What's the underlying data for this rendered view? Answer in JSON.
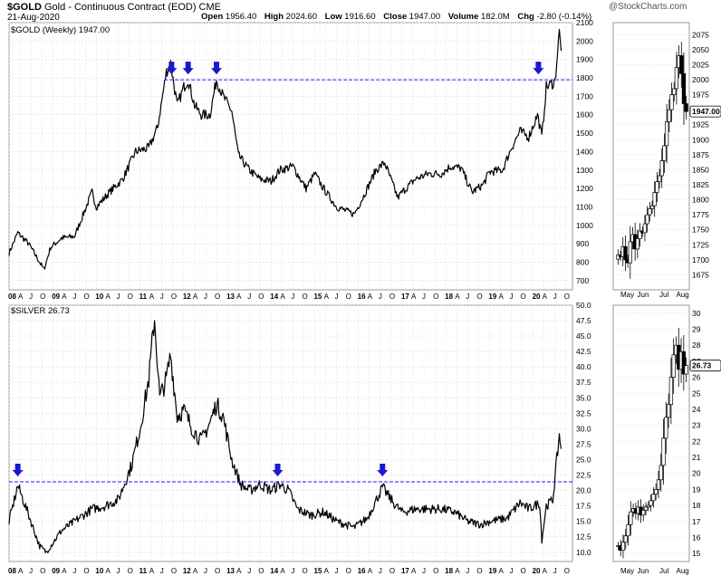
{
  "header": {
    "symbol": "$GOLD",
    "title": "Gold - Continuous Contract (EOD)",
    "exchange": "CME",
    "date": "21-Aug-2020",
    "open_label": "Open",
    "open": "1956.40",
    "high_label": "High",
    "high": "2024.60",
    "low_label": "Low",
    "low": "1916.60",
    "close_label": "Close",
    "close": "1947.00",
    "volume_label": "Volume",
    "volume": "182.0M",
    "chg_label": "Chg",
    "chg": "-2.80 (-0.14%)",
    "brand": "@StockCharts.com"
  },
  "colors": {
    "price_line": "#000000",
    "reference_line": "#1a1aff",
    "arrow": "#1a1acc",
    "grid": "#dcdcdc"
  },
  "chart_data": [
    {
      "type": "line",
      "label": "$GOLD (Weekly) 1947.00",
      "x_tick_labels": [
        "08",
        "A",
        "J",
        "O",
        "09",
        "A",
        "J",
        "O",
        "10",
        "A",
        "J",
        "O",
        "11",
        "A",
        "J",
        "O",
        "12",
        "A",
        "J",
        "O",
        "13",
        "A",
        "J",
        "O",
        "14",
        "A",
        "J",
        "O",
        "15",
        "A",
        "J",
        "O",
        "16",
        "A",
        "J",
        "O",
        "17",
        "A",
        "J",
        "O",
        "18",
        "A",
        "J",
        "O",
        "19",
        "A",
        "J",
        "O",
        "20",
        "A",
        "J",
        "O"
      ],
      "x_range": [
        2008.0,
        2020.9
      ],
      "ylim": [
        650,
        2100
      ],
      "y_ticks": [
        700,
        800,
        900,
        1000,
        1100,
        1200,
        1300,
        1400,
        1500,
        1600,
        1700,
        1800,
        1900,
        2000,
        2100
      ],
      "reference_line": 1790,
      "arrows_at": [
        2011.72,
        2012.1,
        2012.75,
        2020.12
      ],
      "series": [
        {
          "x": [
            2008.0,
            2008.2,
            2008.45,
            2008.8,
            2008.95,
            2009.2,
            2009.5,
            2009.9,
            2010.0,
            2010.3,
            2010.6,
            2010.9,
            2011.2,
            2011.4,
            2011.6,
            2011.7,
            2011.85,
            2012.0,
            2012.1,
            2012.25,
            2012.4,
            2012.6,
            2012.75,
            2012.9,
            2013.1,
            2013.25,
            2013.5,
            2013.75,
            2014.0,
            2014.2,
            2014.5,
            2014.8,
            2015.0,
            2015.2,
            2015.5,
            2015.9,
            2016.1,
            2016.4,
            2016.6,
            2016.9,
            2017.0,
            2017.3,
            2017.6,
            2017.9,
            2018.1,
            2018.35,
            2018.6,
            2018.85,
            2019.0,
            2019.3,
            2019.5,
            2019.7,
            2019.9,
            2020.1,
            2020.2,
            2020.3,
            2020.5,
            2020.6,
            2020.64
          ],
          "values": [
            850,
            960,
            900,
            760,
            880,
            930,
            940,
            1180,
            1100,
            1180,
            1250,
            1400,
            1420,
            1530,
            1830,
            1880,
            1650,
            1750,
            1790,
            1650,
            1600,
            1600,
            1790,
            1700,
            1620,
            1380,
            1300,
            1250,
            1240,
            1300,
            1320,
            1200,
            1280,
            1200,
            1100,
            1060,
            1150,
            1300,
            1340,
            1150,
            1180,
            1250,
            1280,
            1280,
            1320,
            1310,
            1180,
            1220,
            1290,
            1300,
            1420,
            1510,
            1480,
            1600,
            1480,
            1750,
            1780,
            2050,
            1947
          ]
        }
      ]
    },
    {
      "type": "line",
      "label": "$SILVER 26.73",
      "x_tick_labels": [
        "08",
        "A",
        "J",
        "O",
        "09",
        "A",
        "J",
        "O",
        "10",
        "A",
        "J",
        "O",
        "11",
        "A",
        "J",
        "O",
        "12",
        "A",
        "J",
        "O",
        "13",
        "A",
        "J",
        "O",
        "14",
        "A",
        "J",
        "O",
        "15",
        "A",
        "J",
        "O",
        "16",
        "A",
        "J",
        "O",
        "17",
        "A",
        "J",
        "O",
        "18",
        "A",
        "J",
        "O",
        "19",
        "A",
        "J",
        "O",
        "20",
        "A",
        "J",
        "O"
      ],
      "x_range": [
        2008.0,
        2020.9
      ],
      "ylim": [
        8.5,
        50
      ],
      "y_ticks": [
        10.0,
        12.5,
        15.0,
        17.5,
        20.0,
        22.5,
        25.0,
        27.5,
        30.0,
        32.5,
        35.0,
        37.5,
        40.0,
        42.5,
        45.0,
        47.5,
        50.0
      ],
      "reference_line": 21.4,
      "arrows_at": [
        2008.2,
        2014.15,
        2016.55
      ],
      "series": [
        {
          "x": [
            2008.0,
            2008.2,
            2008.4,
            2008.7,
            2008.85,
            2009.2,
            2009.5,
            2009.9,
            2010.2,
            2010.5,
            2010.8,
            2011.0,
            2011.2,
            2011.33,
            2011.45,
            2011.6,
            2011.7,
            2011.85,
            2012.0,
            2012.2,
            2012.4,
            2012.6,
            2012.75,
            2012.9,
            2013.1,
            2013.3,
            2013.5,
            2013.75,
            2014.0,
            2014.2,
            2014.4,
            2014.6,
            2014.9,
            2015.2,
            2015.5,
            2015.9,
            2016.2,
            2016.55,
            2016.8,
            2017.0,
            2017.3,
            2017.6,
            2017.9,
            2018.2,
            2018.5,
            2018.8,
            2019.0,
            2019.4,
            2019.7,
            2019.9,
            2020.15,
            2020.2,
            2020.3,
            2020.45,
            2020.6,
            2020.64
          ],
          "values": [
            15,
            20.8,
            17,
            11,
            10,
            13.5,
            15,
            17,
            17.5,
            18.5,
            24,
            30,
            38,
            48,
            35,
            38,
            42,
            32,
            33,
            30,
            28,
            31,
            34,
            32,
            25,
            21,
            20,
            21,
            20,
            21,
            20,
            17,
            16,
            16.5,
            15,
            14,
            15.5,
            20.5,
            18,
            16.5,
            17,
            17,
            17,
            16.5,
            15,
            14.5,
            15,
            15.5,
            18,
            17,
            18,
            12,
            17.5,
            18.5,
            29,
            26.73
          ]
        }
      ]
    }
  ],
  "mini_charts": [
    {
      "type": "candlestick",
      "x_tick_labels": [
        "May",
        "Jun",
        "Jul",
        "Aug"
      ],
      "y_ticks": [
        1675,
        1700,
        1725,
        1750,
        1775,
        1800,
        1825,
        1850,
        1875,
        1900,
        1925,
        1950,
        1975,
        2000,
        2025,
        2050,
        2075
      ],
      "ylim": [
        1650,
        2095
      ],
      "last_value": "1947.00",
      "closes": [
        1708,
        1705,
        1722,
        1700,
        1695,
        1730,
        1742,
        1718,
        1735,
        1748,
        1745,
        1760,
        1775,
        1785,
        1790,
        1812,
        1830,
        1840,
        1865,
        1890,
        1930,
        1950,
        1975,
        1985,
        2020,
        2040,
        2010,
        1960,
        1947
      ]
    },
    {
      "type": "candlestick",
      "x_tick_labels": [
        "May",
        "Jun",
        "Jul",
        "Aug"
      ],
      "y_ticks": [
        15,
        16,
        17,
        18,
        19,
        20,
        21,
        22,
        23,
        24,
        25,
        26,
        27,
        28,
        29,
        30
      ],
      "ylim": [
        14.5,
        30.5
      ],
      "last_value": "26.73",
      "closes": [
        15.5,
        15.2,
        15.7,
        16.1,
        16.8,
        17.6,
        17.8,
        17.5,
        17.9,
        17.4,
        17.7,
        17.9,
        18.0,
        18.3,
        18.7,
        19.0,
        19.6,
        20.5,
        22.2,
        23.5,
        24.3,
        26.0,
        27.4,
        28.0,
        26.5,
        27.6,
        26.2,
        26.73
      ]
    }
  ]
}
